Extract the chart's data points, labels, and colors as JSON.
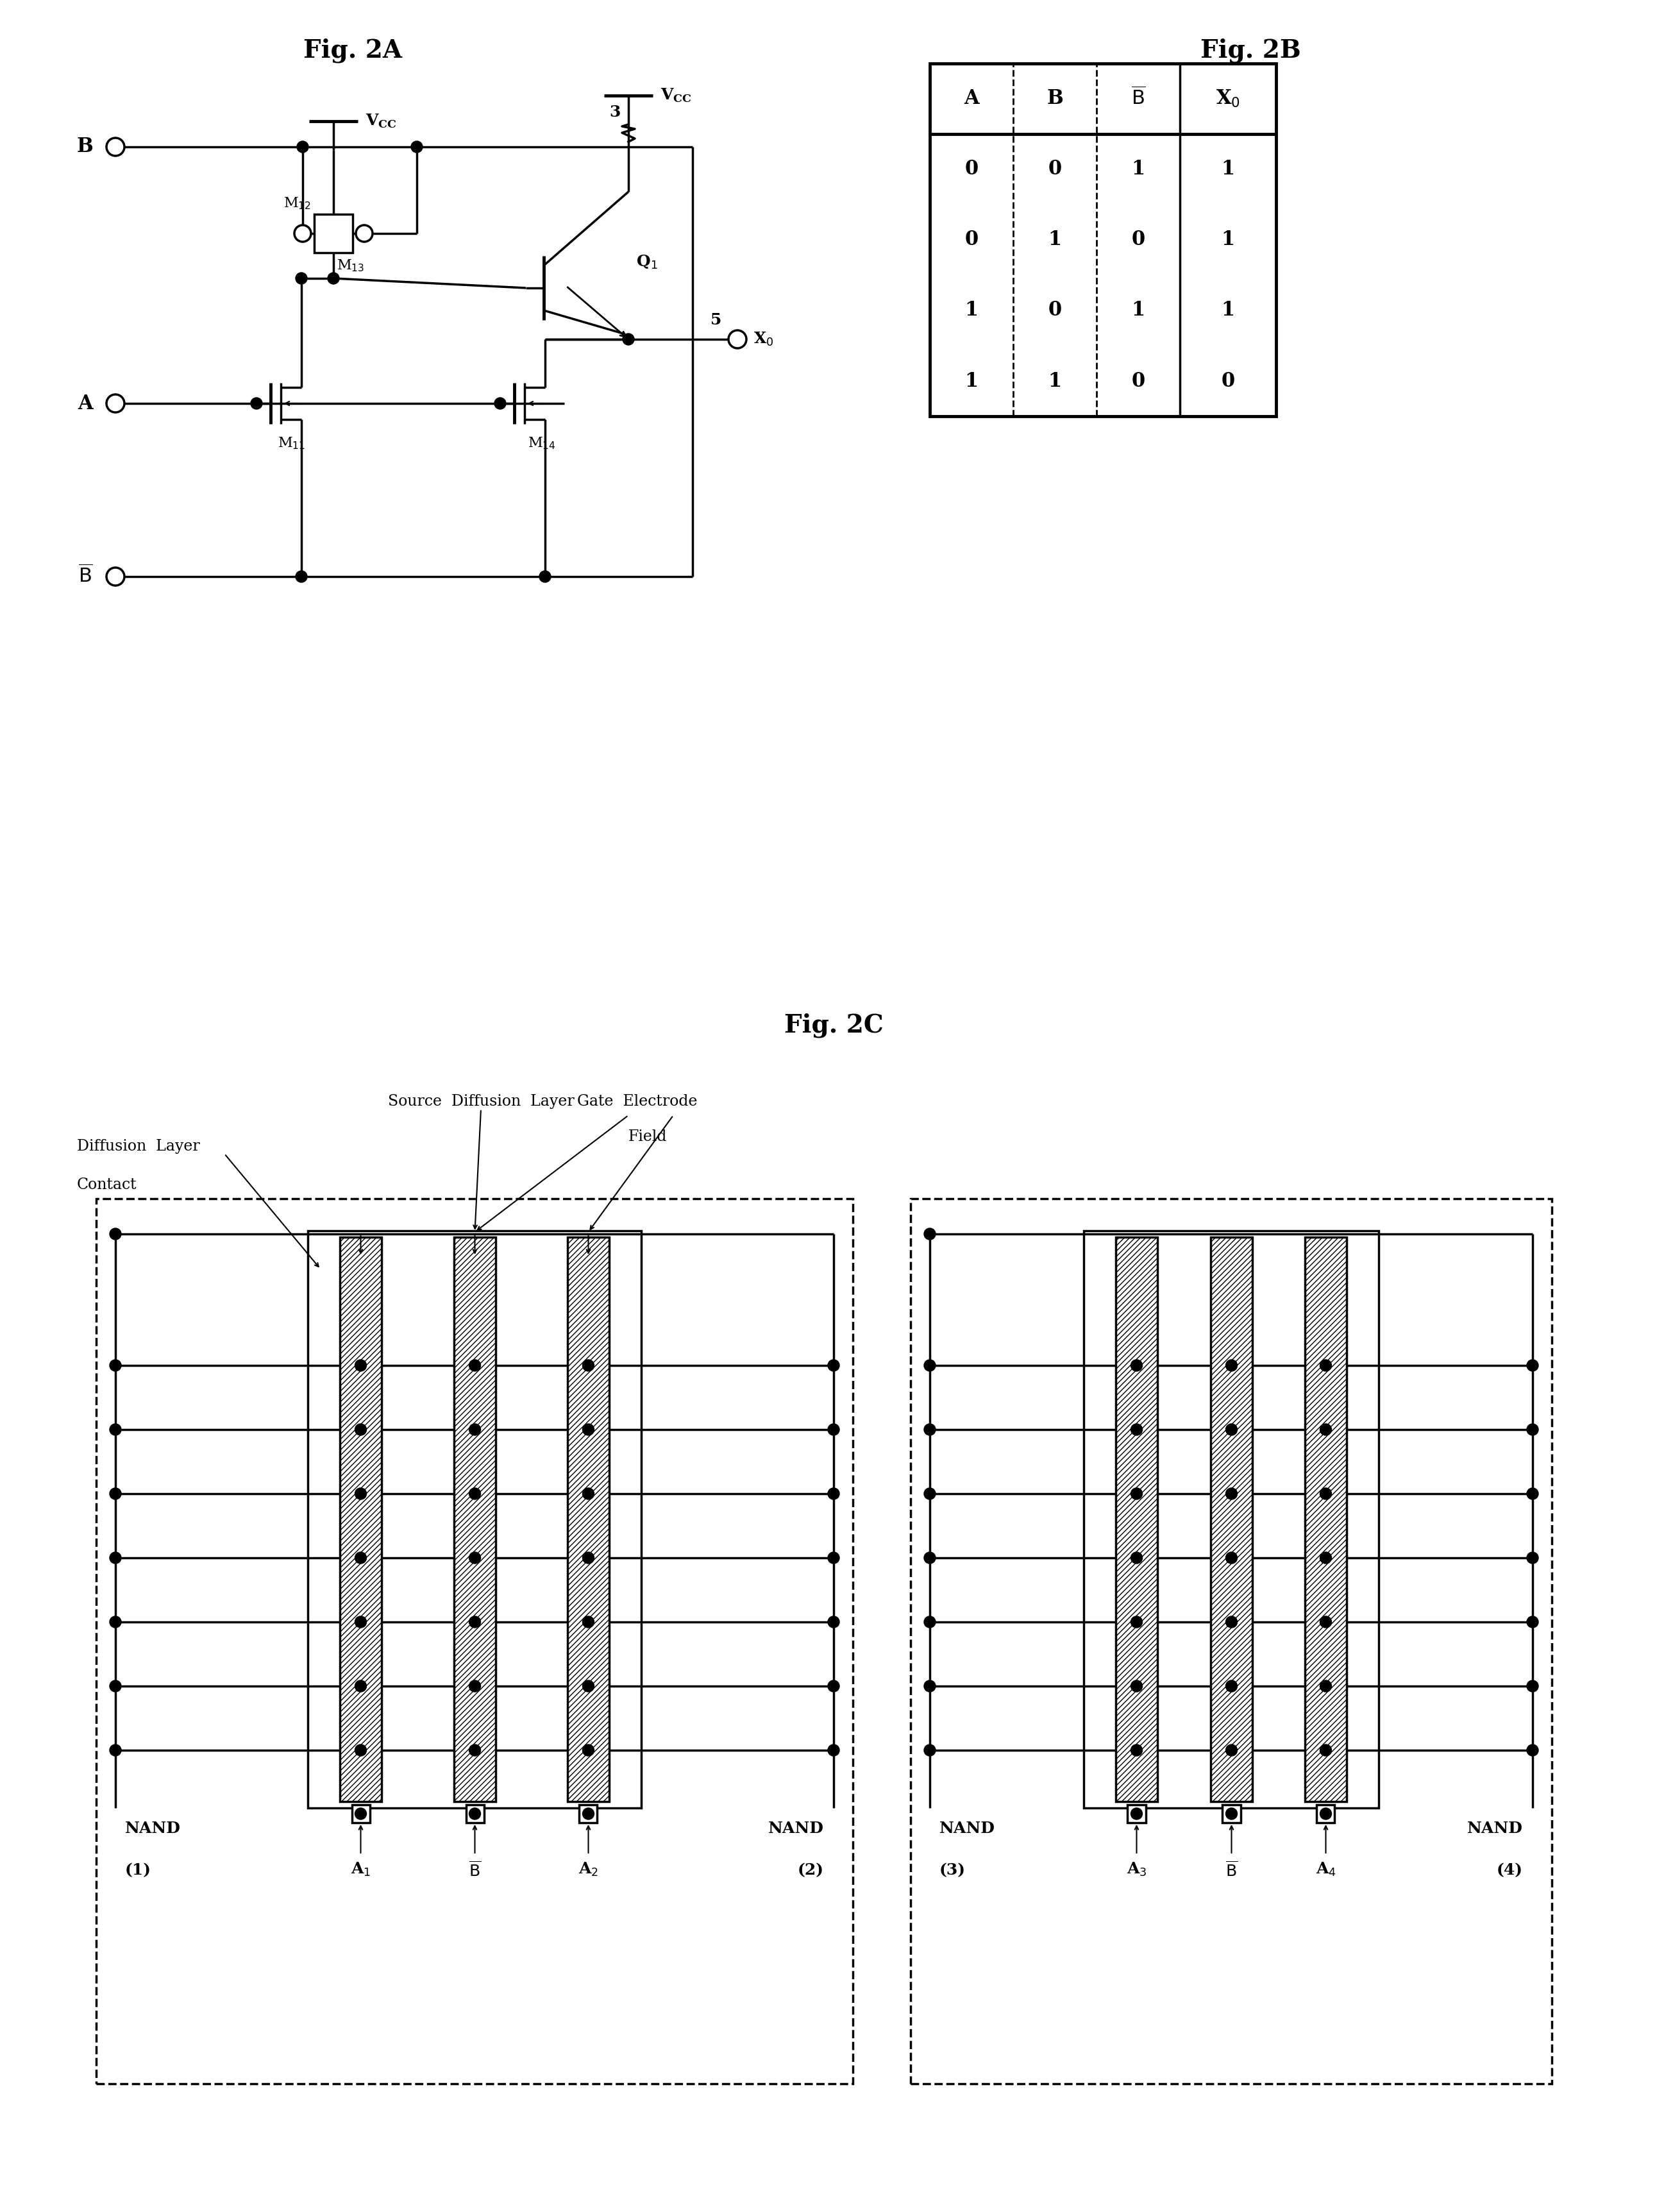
{
  "fig_title_A": "Fig. 2A",
  "fig_title_B": "Fig. 2B",
  "fig_title_C": "Fig. 2C",
  "truth_table_headers": [
    "A",
    "B",
    "B_bar",
    "X0"
  ],
  "truth_table_rows": [
    [
      0,
      0,
      1,
      1
    ],
    [
      0,
      1,
      0,
      1
    ],
    [
      1,
      0,
      1,
      1
    ],
    [
      1,
      1,
      0,
      0
    ]
  ],
  "bg_color": "#ffffff"
}
